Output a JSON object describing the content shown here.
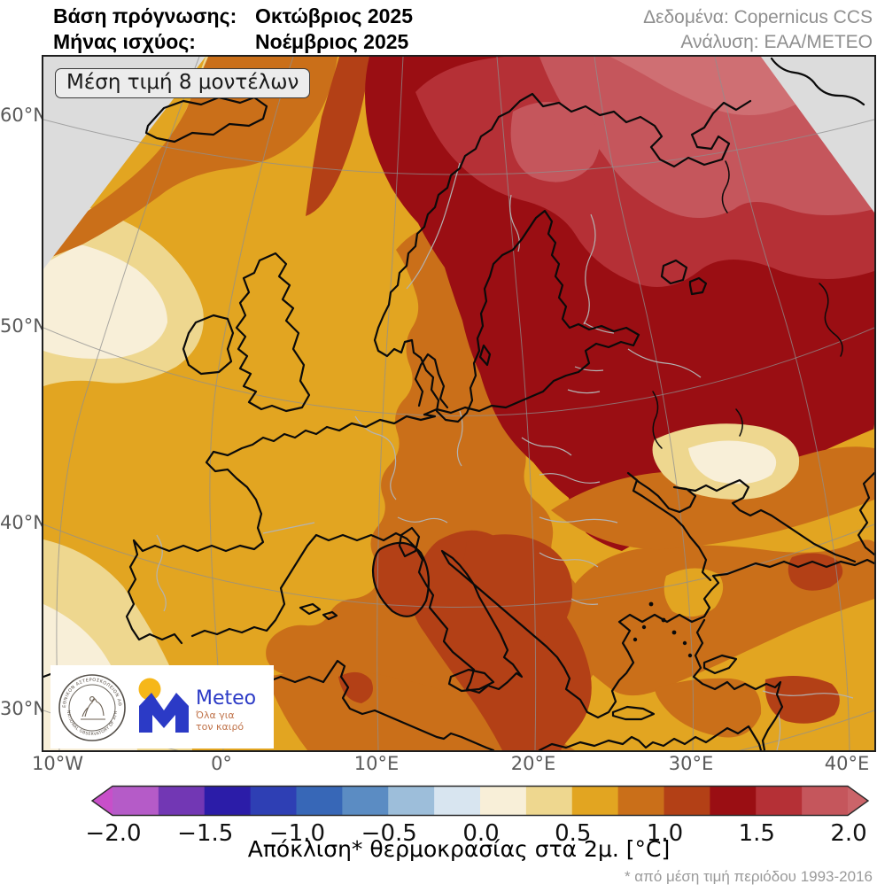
{
  "header": {
    "left": [
      {
        "label": "Βάση πρόγνωσης:",
        "value": "Οκτώβριος 2025"
      },
      {
        "label": "Μήνας ισχύος:",
        "value": "Νοέμβριος 2025"
      }
    ],
    "right": [
      "Δεδομένα: Copernicus CCS",
      "Ανάλυση: ΕΑΑ/ΜΕΤΕΟ"
    ]
  },
  "map": {
    "overlay_label": "Μέση τιμή 8 μοντέλων",
    "lat_labels": [
      "60°N",
      "50°N",
      "40°N",
      "30°N"
    ],
    "lon_labels": [
      "10°W",
      "0°",
      "10°E",
      "20°E",
      "30°E",
      "40°E"
    ]
  },
  "colorbar": {
    "title": "Απόκλιση* θερμοκρασίας στα 2μ. [°C]",
    "footnote": "* από μέση τιμή περιόδου 1993-2016",
    "tick_labels": [
      "−2.0",
      "−1.5",
      "−1.0",
      "−0.5",
      "0.0",
      "0.5",
      "1.0",
      "1.5",
      "2.0"
    ],
    "segment_colors": [
      "#b55bc8",
      "#7237b4",
      "#2b1ca8",
      "#2e3fb4",
      "#3767b7",
      "#5b8cc3",
      "#9dbeda",
      "#d8e5f0",
      "#f8efd8",
      "#eed78f",
      "#e2a521",
      "#ca6f19",
      "#b34016",
      "#9a0e13",
      "#b53036",
      "#c5565c"
    ],
    "under_arrow_color": "#c84fc9",
    "over_arrow_color": "#cb6469"
  },
  "logos": {
    "observatory_ring_top": "ΕΘΝΙΚΟΝ ΑΣΤΕΡΟΣΚΟΠΕΙΟΝ ΑΘΗΝΩΝ",
    "observatory_ring_bottom": "NATIONAL OBSERVATORY OF ATHENS",
    "meteo_name": "Meteo",
    "meteo_tagline_1": "Όλα για",
    "meteo_tagline_2": "τον καιρό"
  },
  "palette": {
    "gray": "#dcdcdc",
    "cream": "#f8efd8",
    "tan": "#eed78f",
    "gold": "#e2a521",
    "orange": "#ca6f19",
    "rust": "#b34016",
    "darkred": "#9a0e13",
    "crimson": "#b53036",
    "rose": "#c5565c",
    "lightrose": "#cf6f73",
    "coast": "#0a0a0a",
    "border": "#b3b3b3",
    "graticule": "#8f8f8f",
    "meteo_blue": "#2b3ac6",
    "meteo_yellow": "#f6b719",
    "meteo_tagline": "#c0734a"
  }
}
